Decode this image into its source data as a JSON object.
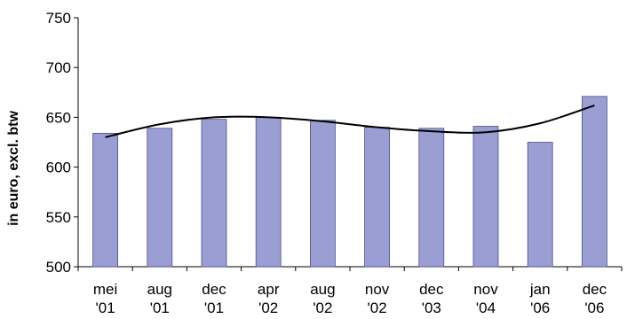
{
  "chart_data": {
    "type": "bar",
    "title": "",
    "xlabel": "",
    "ylabel": "in euro, excl. btw",
    "ylim": [
      500,
      750
    ],
    "yticks": [
      500,
      550,
      600,
      650,
      700,
      750
    ],
    "grid": false,
    "legend": "none",
    "categories": [
      [
        "mei",
        "'01"
      ],
      [
        "aug",
        "'01"
      ],
      [
        "dec",
        "'01"
      ],
      [
        "apr",
        "'02"
      ],
      [
        "aug",
        "'02"
      ],
      [
        "nov",
        "'02"
      ],
      [
        "dec",
        "'03"
      ],
      [
        "nov",
        "'04"
      ],
      [
        "jan",
        "'06"
      ],
      [
        "dec",
        "'06"
      ]
    ],
    "values": [
      634,
      639,
      648,
      650,
      647,
      640,
      639,
      641,
      625,
      671
    ],
    "trendline": {
      "type": "polynomial",
      "values": [
        630,
        643,
        650,
        650,
        646,
        640,
        636,
        635,
        644,
        662
      ]
    },
    "colors": {
      "bar_fill": "#9a9ed2",
      "bar_stroke": "#4a4f8c",
      "trend": "#000000",
      "axis": "#000000"
    }
  }
}
